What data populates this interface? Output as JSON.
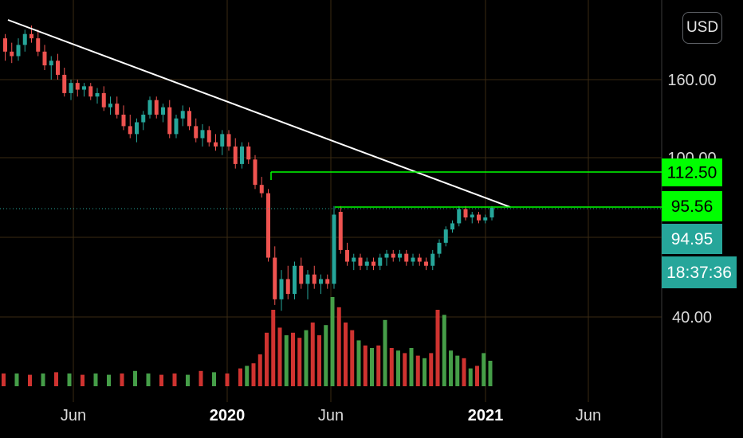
{
  "currency_button": "USD",
  "chart_data": {
    "type": "candlestick",
    "x_ticks": [
      "Jun",
      "2020",
      "Jun",
      "2021",
      "Jun"
    ],
    "y_ticks": [
      "160.00",
      "100.00",
      "40.00"
    ],
    "price_labels": [
      {
        "text": "112.50",
        "kind": "level",
        "color": "#00ff00"
      },
      {
        "text": "95.56",
        "kind": "level",
        "color": "#00ff00"
      },
      {
        "text": "94.95",
        "kind": "last-price",
        "color": "#26a69a"
      },
      {
        "text": "18:37:36",
        "kind": "countdown",
        "color": "#26a69a"
      }
    ],
    "y_range": [
      20,
      200
    ],
    "y_scale": "log",
    "horizontal_levels": [
      {
        "value": 112.5,
        "color": "#00ff00"
      },
      {
        "value": 95.56,
        "color": "#00ff00"
      }
    ],
    "trendline": {
      "from": [
        178,
        0.04
      ],
      "to": [
        95.56,
        0.69
      ],
      "color": "#ffffff"
    },
    "colors": {
      "up": "#26a69a",
      "down": "#ef5350",
      "vol_up": "#4caf50",
      "vol_down": "#e53935",
      "grid": "#3a2a12"
    },
    "candles": [
      {
        "x": 0.0,
        "o": 178,
        "h": 180,
        "l": 168,
        "c": 172
      },
      {
        "x": 0.01,
        "o": 172,
        "h": 176,
        "l": 167,
        "c": 170
      },
      {
        "x": 0.02,
        "o": 170,
        "h": 178,
        "l": 168,
        "c": 175
      },
      {
        "x": 0.03,
        "o": 175,
        "h": 182,
        "l": 172,
        "c": 180
      },
      {
        "x": 0.04,
        "o": 180,
        "h": 184,
        "l": 176,
        "c": 178
      },
      {
        "x": 0.05,
        "o": 178,
        "h": 182,
        "l": 170,
        "c": 172
      },
      {
        "x": 0.06,
        "o": 172,
        "h": 175,
        "l": 164,
        "c": 166
      },
      {
        "x": 0.07,
        "o": 166,
        "h": 170,
        "l": 160,
        "c": 168
      },
      {
        "x": 0.08,
        "o": 168,
        "h": 171,
        "l": 160,
        "c": 162
      },
      {
        "x": 0.09,
        "o": 162,
        "h": 165,
        "l": 150,
        "c": 152
      },
      {
        "x": 0.1,
        "o": 152,
        "h": 160,
        "l": 148,
        "c": 158
      },
      {
        "x": 0.11,
        "o": 158,
        "h": 160,
        "l": 150,
        "c": 154
      },
      {
        "x": 0.12,
        "o": 154,
        "h": 158,
        "l": 150,
        "c": 156
      },
      {
        "x": 0.13,
        "o": 156,
        "h": 158,
        "l": 148,
        "c": 150
      },
      {
        "x": 0.14,
        "o": 150,
        "h": 155,
        "l": 146,
        "c": 152
      },
      {
        "x": 0.15,
        "o": 152,
        "h": 156,
        "l": 142,
        "c": 144
      },
      {
        "x": 0.16,
        "o": 144,
        "h": 150,
        "l": 140,
        "c": 146
      },
      {
        "x": 0.17,
        "o": 146,
        "h": 150,
        "l": 138,
        "c": 140
      },
      {
        "x": 0.18,
        "o": 140,
        "h": 145,
        "l": 132,
        "c": 134
      },
      {
        "x": 0.19,
        "o": 134,
        "h": 140,
        "l": 128,
        "c": 130
      },
      {
        "x": 0.2,
        "o": 130,
        "h": 138,
        "l": 126,
        "c": 136
      },
      {
        "x": 0.21,
        "o": 136,
        "h": 142,
        "l": 132,
        "c": 140
      },
      {
        "x": 0.22,
        "o": 140,
        "h": 150,
        "l": 138,
        "c": 148
      },
      {
        "x": 0.23,
        "o": 148,
        "h": 150,
        "l": 138,
        "c": 140
      },
      {
        "x": 0.24,
        "o": 140,
        "h": 146,
        "l": 136,
        "c": 144
      },
      {
        "x": 0.25,
        "o": 144,
        "h": 148,
        "l": 128,
        "c": 130
      },
      {
        "x": 0.26,
        "o": 130,
        "h": 140,
        "l": 128,
        "c": 138
      },
      {
        "x": 0.27,
        "o": 138,
        "h": 145,
        "l": 134,
        "c": 142
      },
      {
        "x": 0.28,
        "o": 142,
        "h": 144,
        "l": 132,
        "c": 134
      },
      {
        "x": 0.29,
        "o": 134,
        "h": 138,
        "l": 126,
        "c": 128
      },
      {
        "x": 0.3,
        "o": 128,
        "h": 135,
        "l": 124,
        "c": 132
      },
      {
        "x": 0.31,
        "o": 132,
        "h": 134,
        "l": 124,
        "c": 126
      },
      {
        "x": 0.32,
        "o": 126,
        "h": 130,
        "l": 122,
        "c": 124
      },
      {
        "x": 0.33,
        "o": 124,
        "h": 132,
        "l": 120,
        "c": 130
      },
      {
        "x": 0.34,
        "o": 130,
        "h": 132,
        "l": 122,
        "c": 124
      },
      {
        "x": 0.35,
        "o": 124,
        "h": 128,
        "l": 114,
        "c": 116
      },
      {
        "x": 0.36,
        "o": 116,
        "h": 126,
        "l": 114,
        "c": 124
      },
      {
        "x": 0.37,
        "o": 124,
        "h": 126,
        "l": 116,
        "c": 118
      },
      {
        "x": 0.38,
        "o": 118,
        "h": 120,
        "l": 104,
        "c": 106
      },
      {
        "x": 0.39,
        "o": 106,
        "h": 110,
        "l": 100,
        "c": 102
      },
      {
        "x": 0.4,
        "o": 102,
        "h": 104,
        "l": 62,
        "c": 64
      },
      {
        "x": 0.41,
        "o": 64,
        "h": 70,
        "l": 44,
        "c": 46
      },
      {
        "x": 0.42,
        "o": 46,
        "h": 58,
        "l": 42,
        "c": 54
      },
      {
        "x": 0.43,
        "o": 54,
        "h": 60,
        "l": 46,
        "c": 48
      },
      {
        "x": 0.44,
        "o": 48,
        "h": 62,
        "l": 46,
        "c": 60
      },
      {
        "x": 0.45,
        "o": 60,
        "h": 64,
        "l": 50,
        "c": 52
      },
      {
        "x": 0.46,
        "o": 52,
        "h": 58,
        "l": 46,
        "c": 56
      },
      {
        "x": 0.47,
        "o": 56,
        "h": 60,
        "l": 50,
        "c": 52
      },
      {
        "x": 0.48,
        "o": 52,
        "h": 56,
        "l": 48,
        "c": 54
      },
      {
        "x": 0.49,
        "o": 54,
        "h": 56,
        "l": 50,
        "c": 52
      },
      {
        "x": 0.5,
        "o": 52,
        "h": 96,
        "l": 50,
        "c": 90
      },
      {
        "x": 0.51,
        "o": 92,
        "h": 96,
        "l": 66,
        "c": 68
      },
      {
        "x": 0.52,
        "o": 68,
        "h": 72,
        "l": 60,
        "c": 62
      },
      {
        "x": 0.53,
        "o": 62,
        "h": 66,
        "l": 58,
        "c": 64
      },
      {
        "x": 0.54,
        "o": 64,
        "h": 66,
        "l": 58,
        "c": 60
      },
      {
        "x": 0.55,
        "o": 60,
        "h": 64,
        "l": 58,
        "c": 62
      },
      {
        "x": 0.56,
        "o": 62,
        "h": 64,
        "l": 58,
        "c": 60
      },
      {
        "x": 0.57,
        "o": 60,
        "h": 66,
        "l": 58,
        "c": 64
      },
      {
        "x": 0.58,
        "o": 64,
        "h": 68,
        "l": 60,
        "c": 66
      },
      {
        "x": 0.59,
        "o": 66,
        "h": 68,
        "l": 62,
        "c": 64
      },
      {
        "x": 0.6,
        "o": 64,
        "h": 68,
        "l": 62,
        "c": 66
      },
      {
        "x": 0.61,
        "o": 66,
        "h": 68,
        "l": 60,
        "c": 62
      },
      {
        "x": 0.62,
        "o": 62,
        "h": 66,
        "l": 60,
        "c": 64
      },
      {
        "x": 0.63,
        "o": 64,
        "h": 66,
        "l": 60,
        "c": 62
      },
      {
        "x": 0.64,
        "o": 62,
        "h": 64,
        "l": 58,
        "c": 60
      },
      {
        "x": 0.65,
        "o": 60,
        "h": 68,
        "l": 58,
        "c": 66
      },
      {
        "x": 0.66,
        "o": 66,
        "h": 74,
        "l": 64,
        "c": 72
      },
      {
        "x": 0.67,
        "o": 72,
        "h": 82,
        "l": 70,
        "c": 80
      },
      {
        "x": 0.68,
        "o": 80,
        "h": 86,
        "l": 78,
        "c": 84
      },
      {
        "x": 0.69,
        "o": 84,
        "h": 96,
        "l": 82,
        "c": 94
      },
      {
        "x": 0.7,
        "o": 94,
        "h": 96,
        "l": 86,
        "c": 88
      },
      {
        "x": 0.71,
        "o": 88,
        "h": 92,
        "l": 84,
        "c": 90
      },
      {
        "x": 0.72,
        "o": 90,
        "h": 92,
        "l": 84,
        "c": 86
      },
      {
        "x": 0.73,
        "o": 86,
        "h": 90,
        "l": 84,
        "c": 88
      },
      {
        "x": 0.74,
        "o": 88,
        "h": 96,
        "l": 86,
        "c": 94.95
      }
    ],
    "volume": [
      {
        "x": 0.0,
        "v": 10,
        "up": false
      },
      {
        "x": 0.02,
        "v": 10,
        "up": true
      },
      {
        "x": 0.04,
        "v": 9,
        "up": false
      },
      {
        "x": 0.06,
        "v": 10,
        "up": true
      },
      {
        "x": 0.08,
        "v": 11,
        "up": false
      },
      {
        "x": 0.1,
        "v": 10,
        "up": true
      },
      {
        "x": 0.12,
        "v": 9,
        "up": false
      },
      {
        "x": 0.14,
        "v": 10,
        "up": true
      },
      {
        "x": 0.16,
        "v": 9,
        "up": true
      },
      {
        "x": 0.18,
        "v": 10,
        "up": false
      },
      {
        "x": 0.2,
        "v": 12,
        "up": true
      },
      {
        "x": 0.22,
        "v": 10,
        "up": true
      },
      {
        "x": 0.24,
        "v": 9,
        "up": false
      },
      {
        "x": 0.26,
        "v": 10,
        "up": false
      },
      {
        "x": 0.28,
        "v": 9,
        "up": true
      },
      {
        "x": 0.3,
        "v": 12,
        "up": false
      },
      {
        "x": 0.32,
        "v": 11,
        "up": true
      },
      {
        "x": 0.34,
        "v": 10,
        "up": false
      },
      {
        "x": 0.36,
        "v": 14,
        "up": false
      },
      {
        "x": 0.37,
        "v": 16,
        "up": true
      },
      {
        "x": 0.38,
        "v": 18,
        "up": false
      },
      {
        "x": 0.39,
        "v": 25,
        "up": false
      },
      {
        "x": 0.4,
        "v": 42,
        "up": false
      },
      {
        "x": 0.41,
        "v": 60,
        "up": false
      },
      {
        "x": 0.42,
        "v": 46,
        "up": false
      },
      {
        "x": 0.43,
        "v": 40,
        "up": true
      },
      {
        "x": 0.44,
        "v": 42,
        "up": false
      },
      {
        "x": 0.45,
        "v": 38,
        "up": false
      },
      {
        "x": 0.46,
        "v": 44,
        "up": true
      },
      {
        "x": 0.47,
        "v": 50,
        "up": false
      },
      {
        "x": 0.48,
        "v": 40,
        "up": false
      },
      {
        "x": 0.49,
        "v": 48,
        "up": true
      },
      {
        "x": 0.5,
        "v": 70,
        "up": true
      },
      {
        "x": 0.51,
        "v": 62,
        "up": false
      },
      {
        "x": 0.52,
        "v": 50,
        "up": false
      },
      {
        "x": 0.53,
        "v": 44,
        "up": false
      },
      {
        "x": 0.54,
        "v": 36,
        "up": true
      },
      {
        "x": 0.55,
        "v": 32,
        "up": false
      },
      {
        "x": 0.56,
        "v": 30,
        "up": true
      },
      {
        "x": 0.57,
        "v": 32,
        "up": false
      },
      {
        "x": 0.58,
        "v": 52,
        "up": true
      },
      {
        "x": 0.59,
        "v": 30,
        "up": false
      },
      {
        "x": 0.6,
        "v": 28,
        "up": true
      },
      {
        "x": 0.61,
        "v": 26,
        "up": false
      },
      {
        "x": 0.62,
        "v": 30,
        "up": true
      },
      {
        "x": 0.63,
        "v": 24,
        "up": false
      },
      {
        "x": 0.64,
        "v": 22,
        "up": true
      },
      {
        "x": 0.65,
        "v": 26,
        "up": false
      },
      {
        "x": 0.66,
        "v": 60,
        "up": false
      },
      {
        "x": 0.67,
        "v": 56,
        "up": true
      },
      {
        "x": 0.68,
        "v": 28,
        "up": true
      },
      {
        "x": 0.69,
        "v": 24,
        "up": true
      },
      {
        "x": 0.7,
        "v": 22,
        "up": false
      },
      {
        "x": 0.71,
        "v": 14,
        "up": true
      },
      {
        "x": 0.72,
        "v": 16,
        "up": false
      },
      {
        "x": 0.73,
        "v": 26,
        "up": true
      },
      {
        "x": 0.74,
        "v": 20,
        "up": true
      }
    ]
  }
}
